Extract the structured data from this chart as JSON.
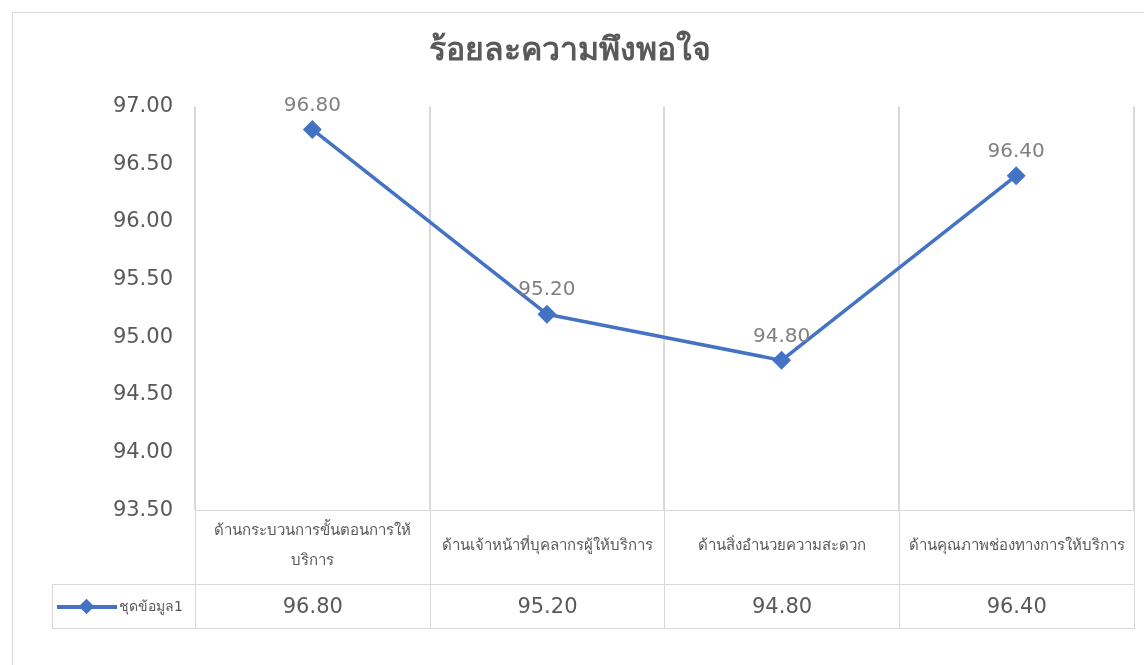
{
  "chart_data": {
    "type": "line",
    "title": "ร้อยละความพึงพอใจ",
    "categories": [
      "ด้านกระบวนการขั้นตอนการให้บริการ",
      "ด้านเจ้าหน้าที่บุคลากรผู้ให้บริการ",
      "ด้านสิ่งอำนวยความสะดวก",
      "ด้านคุณภาพช่องทางการให้บริการ"
    ],
    "series": [
      {
        "name": "ชุดข้อมูล1",
        "color": "#4472c4",
        "values": [
          96.8,
          95.2,
          94.8,
          96.4
        ],
        "value_labels": [
          "96.80",
          "95.20",
          "94.80",
          "96.40"
        ]
      }
    ],
    "ylim": [
      93.5,
      97
    ],
    "yticks": [
      {
        "value": 93.5,
        "label": "93.50"
      },
      {
        "value": 94,
        "label": "94.00"
      },
      {
        "value": 94.5,
        "label": "94.50"
      },
      {
        "value": 95,
        "label": "95.00"
      },
      {
        "value": 95.5,
        "label": "95.50"
      },
      {
        "value": 96,
        "label": "96.00"
      },
      {
        "value": 96.5,
        "label": "96.50"
      },
      {
        "value": 97,
        "label": "97.00"
      }
    ],
    "grid": "x",
    "legend": "bottom",
    "marker": "diamond",
    "line_style": "solid"
  }
}
